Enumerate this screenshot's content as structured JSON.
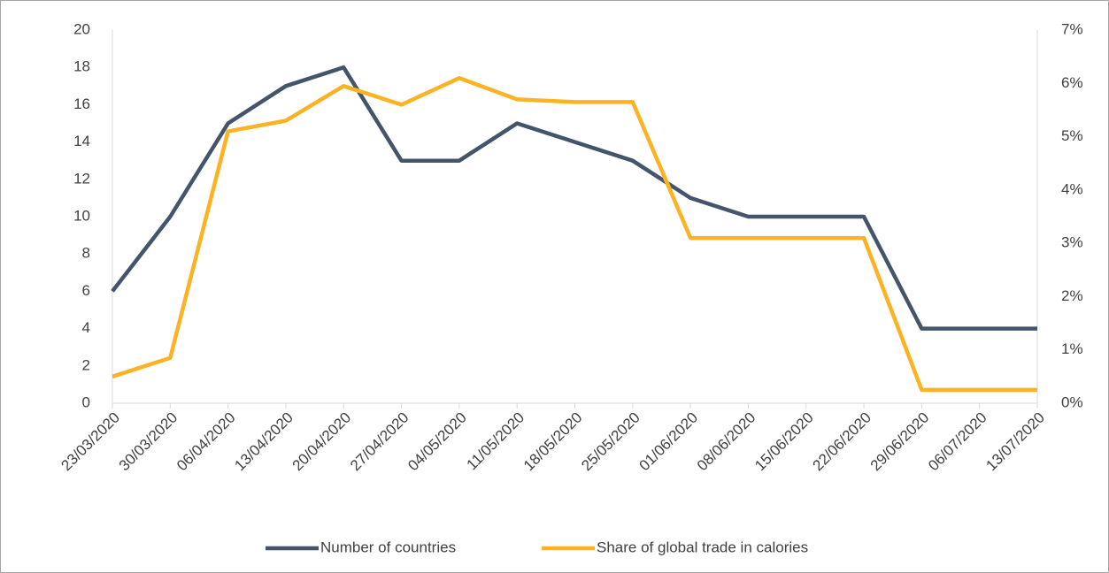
{
  "chart_data": {
    "type": "line",
    "categories": [
      "23/03/2020",
      "30/03/2020",
      "06/04/2020",
      "13/04/2020",
      "20/04/2020",
      "27/04/2020",
      "04/05/2020",
      "11/05/2020",
      "18/05/2020",
      "25/05/2020",
      "01/06/2020",
      "08/06/2020",
      "15/06/2020",
      "22/06/2020",
      "29/06/2020",
      "06/07/2020",
      "13/07/2020"
    ],
    "series": [
      {
        "name": "Number of countries",
        "color": "#44546a",
        "values": [
          6,
          10,
          15,
          17,
          18,
          13,
          13,
          15,
          14,
          13,
          11,
          10,
          10,
          10,
          4,
          4,
          4
        ]
      },
      {
        "name": "Share of global trade in calories",
        "color": "#fbb324",
        "axis": "y2",
        "values": [
          0.5,
          0.85,
          5.1,
          5.3,
          5.95,
          5.6,
          6.1,
          5.7,
          5.65,
          5.65,
          3.1,
          3.1,
          3.1,
          3.1,
          0.25,
          0.25,
          0.25
        ]
      }
    ],
    "ylim": [
      0,
      20
    ],
    "yticks": [
      0,
      2,
      4,
      6,
      8,
      10,
      12,
      14,
      16,
      18,
      20
    ],
    "y2lim": [
      0,
      7
    ],
    "y2ticks": [
      {
        "value": 0,
        "label": "0%"
      },
      {
        "value": 1,
        "label": "1%"
      },
      {
        "value": 2,
        "label": "2%"
      },
      {
        "value": 3,
        "label": "3%"
      },
      {
        "value": 4,
        "label": "4%"
      },
      {
        "value": 5,
        "label": "5%"
      },
      {
        "value": 6,
        "label": "6%"
      },
      {
        "value": 7,
        "label": "7%"
      }
    ],
    "legend": "bottom",
    "grid": false
  }
}
